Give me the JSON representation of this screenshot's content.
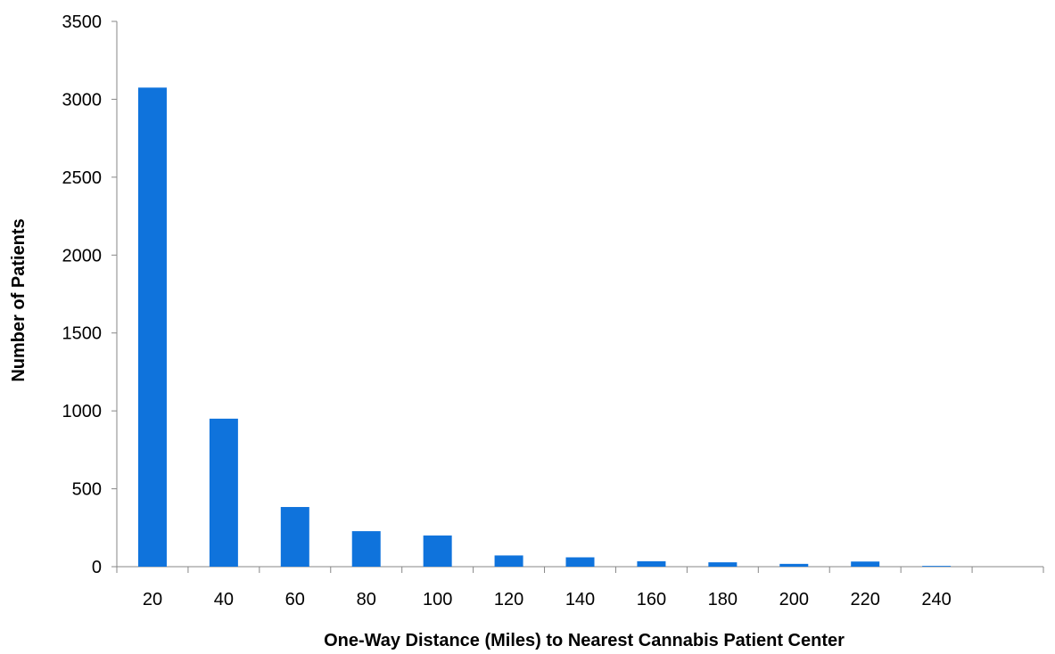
{
  "chart_data": {
    "type": "bar",
    "title": "",
    "xlabel": "One-Way Distance (Miles) to Nearest Cannabis Patient Center",
    "ylabel": "Number of Patients",
    "categories": [
      "20",
      "40",
      "60",
      "80",
      "100",
      "120",
      "140",
      "160",
      "180",
      "200",
      "220",
      "240"
    ],
    "values": [
      3075,
      950,
      383,
      228,
      200,
      72,
      60,
      35,
      28,
      18,
      33,
      5
    ],
    "ylim": [
      0,
      3500
    ],
    "yticks": [
      "0",
      "500",
      "1000",
      "1500",
      "2000",
      "2500",
      "3000",
      "3500"
    ],
    "bar_color": "#0F73DC",
    "axis_color": "#878787",
    "grid": false,
    "legend": "none"
  }
}
